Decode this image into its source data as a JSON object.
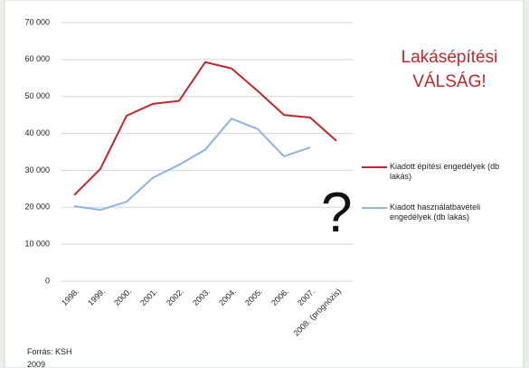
{
  "chart_data": {
    "type": "line",
    "title": "Lakásépítési VÁLSÁG!",
    "annotations": [
      "?",
      "Forrás: KSH",
      "2009"
    ],
    "categories": [
      "1998.",
      "1999.",
      "2000.",
      "2001.",
      "2002.",
      "2003.",
      "2004.",
      "2005.",
      "2006.",
      "2007.",
      "2008. (prognózis)"
    ],
    "series": [
      {
        "name": "Kiadott építési engedélyek (db lakás)",
        "color": "#c0262b",
        "values": [
          23300,
          30400,
          44800,
          48000,
          48800,
          59300,
          57600,
          51500,
          45000,
          44300,
          38000
        ]
      },
      {
        "name": "Kiadott használatbavételi engedélyek (db lakás)",
        "color": "#8fb3dc",
        "values": [
          20300,
          19300,
          21500,
          28000,
          31500,
          35600,
          44000,
          41200,
          33800,
          36200,
          null
        ]
      }
    ],
    "ylim": [
      0,
      70000
    ],
    "yticks": [
      0,
      {
        "value": 10000,
        "label": "10 000"
      },
      {
        "value": 20000,
        "label": "20 000"
      },
      {
        "value": 30000,
        "label": "30 000"
      },
      {
        "value": 40000,
        "label": "40 000"
      },
      {
        "value": 50000,
        "label": "50 000"
      },
      {
        "value": 60000,
        "label": "60 000"
      },
      {
        "value": 70000,
        "label": "70 000"
      }
    ],
    "grid": true,
    "legend": "right"
  }
}
